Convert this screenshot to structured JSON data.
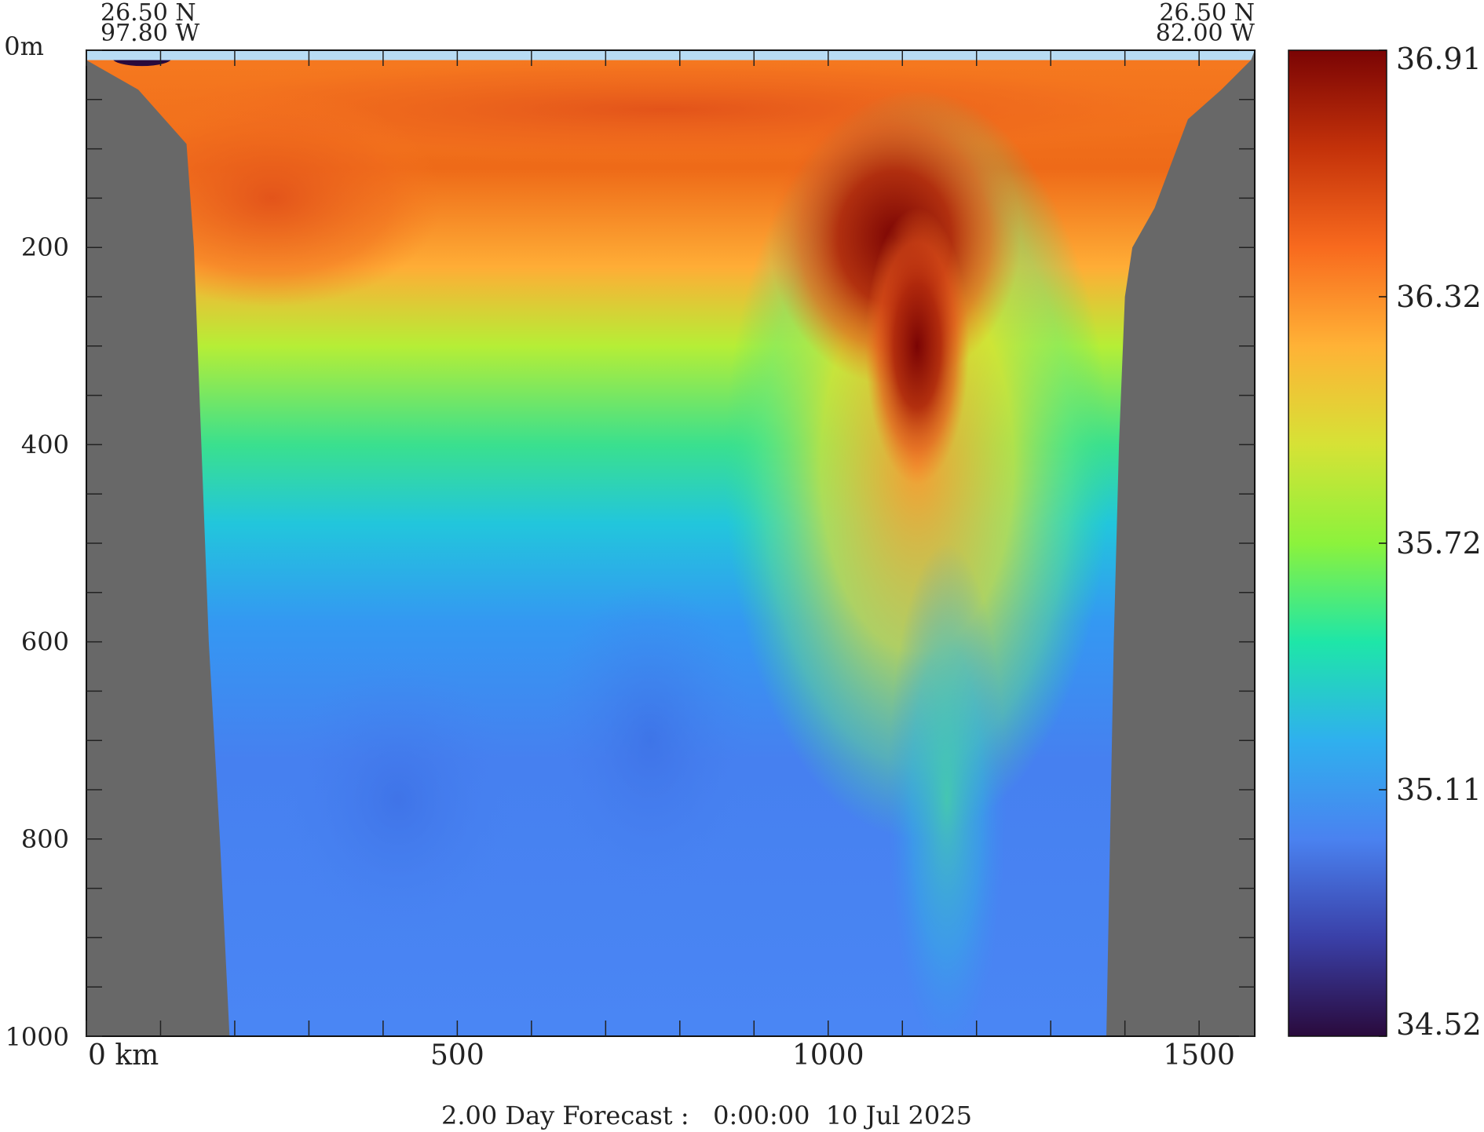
{
  "chart_data": {
    "type": "heatmap",
    "title": "",
    "xlabel": "",
    "ylabel": "",
    "x_unit": "km",
    "y_unit": "m",
    "xlim": [
      0,
      1575
    ],
    "ylim": [
      0,
      1000
    ],
    "x_ticks": [
      {
        "value": 0,
        "label": "0 km"
      },
      {
        "value": 500,
        "label": "500"
      },
      {
        "value": 1000,
        "label": "1000"
      },
      {
        "value": 1500,
        "label": "1500"
      }
    ],
    "x_minor_step": 100,
    "y_ticks": [
      {
        "value": 0,
        "label": "0m"
      },
      {
        "value": 200,
        "label": "200"
      },
      {
        "value": 400,
        "label": "400"
      },
      {
        "value": 600,
        "label": "600"
      },
      {
        "value": 800,
        "label": "800"
      },
      {
        "value": 1000,
        "label": "1000"
      }
    ],
    "y_minor_step": 50,
    "endpoints": {
      "left": {
        "lat": "26.50 N",
        "lon": "97.80 W"
      },
      "right": {
        "lat": "26.50 N",
        "lon": "82.00 W"
      }
    },
    "colorbar": {
      "min": 34.52,
      "max": 36.91,
      "labels": [
        "36.91",
        "36.32",
        "35.72",
        "35.11",
        "34.52"
      ],
      "colors": [
        "#2a0a3c",
        "#3a40a8",
        "#4a82f0",
        "#2fb0ee",
        "#1ee6a8",
        "#8cf23c",
        "#d6e236",
        "#ffb236",
        "#f86a1e",
        "#c4320a",
        "#7a0404"
      ]
    },
    "bathymetry": {
      "land_color": "#686868",
      "left_wall": [
        [
          0,
          10
        ],
        [
          70,
          40
        ],
        [
          135,
          95
        ],
        [
          145,
          200
        ],
        [
          155,
          400
        ],
        [
          165,
          600
        ],
        [
          180,
          800
        ],
        [
          193,
          1000
        ]
      ],
      "right_wall": [
        [
          1375,
          1000
        ],
        [
          1380,
          800
        ],
        [
          1385,
          600
        ],
        [
          1392,
          400
        ],
        [
          1400,
          250
        ],
        [
          1410,
          200
        ],
        [
          1440,
          160
        ],
        [
          1485,
          70
        ],
        [
          1530,
          40
        ],
        [
          1570,
          10
        ],
        [
          1575,
          0
        ]
      ]
    },
    "field_features": [
      {
        "x": 1100,
        "y": 160,
        "value": 36.91
      },
      {
        "x": 250,
        "y": 150,
        "value": 36.55
      },
      {
        "x": 1100,
        "y": 300,
        "value": 36.8
      },
      {
        "x": 1150,
        "y": 750,
        "value": 35.5
      },
      {
        "x": 500,
        "y": 850,
        "value": 34.9
      }
    ],
    "forecast_label": "2.00 Day Forecast :   0:00:00  10 Jul 2025"
  }
}
